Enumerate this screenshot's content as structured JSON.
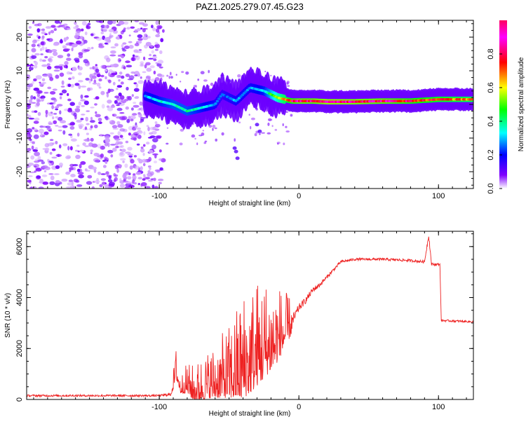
{
  "title": "PAZ1.2025.279.07.45.G23",
  "chart_data": [
    {
      "type": "heatmap",
      "title": "PAZ1.2025.279.07.45.G23",
      "xlabel": "Height of straight line (km)",
      "ylabel": "Frequency (Hz)",
      "xlim": [
        -195,
        125
      ],
      "ylim": [
        -25,
        25
      ],
      "xticks": [
        -100,
        0,
        100
      ],
      "yticks": [
        -20,
        -10,
        0,
        10,
        20
      ],
      "colorbar": {
        "label": "Normalized spectral amplitude",
        "range": [
          0,
          1
        ],
        "ticks": [
          "0.0",
          "0.2",
          "0.4",
          "0.6",
          "0.8"
        ],
        "tick_values": [
          0,
          0.2,
          0.4,
          0.6,
          0.8
        ],
        "colors": [
          "#ffffff",
          "#8000ff",
          "#0000ff",
          "#00ffff",
          "#00ff00",
          "#ffff00",
          "#ff0000",
          "#ff00ff",
          "#ff0060"
        ]
      },
      "ridge": {
        "x": [
          -110,
          -100,
          -90,
          -80,
          -70,
          -60,
          -55,
          -45,
          -35,
          -25,
          -15,
          -5,
          0,
          10,
          20,
          40,
          60,
          80,
          100,
          125
        ],
        "frequency": [
          2.5,
          1,
          0,
          -2,
          -1,
          0,
          3,
          1,
          5,
          4,
          2,
          1,
          1,
          1,
          0.8,
          0.8,
          1,
          1,
          1.5,
          1.5
        ],
        "amplitude": [
          0.3,
          0.35,
          0.4,
          0.4,
          0.35,
          0.3,
          0.25,
          0.3,
          0.3,
          0.35,
          0.6,
          0.8,
          0.85,
          0.85,
          0.9,
          0.88,
          0.85,
          0.8,
          0.75,
          0.7
        ]
      },
      "noise_region_x": [
        -195,
        -100
      ]
    },
    {
      "type": "line",
      "xlabel": "Height of straight line (km)",
      "ylabel": "SNR (10 * v/v)",
      "xlim": [
        -195,
        125
      ],
      "ylim": [
        0,
        6600
      ],
      "xticks": [
        -100,
        0,
        100
      ],
      "yticks": [
        0,
        2000,
        4000,
        6000
      ],
      "color": "#ee2222",
      "series": [
        {
          "name": "SNR",
          "x": [
            -195,
            -150,
            -100,
            -92,
            -90,
            -88,
            -85,
            -80,
            -75,
            -70,
            -60,
            -50,
            -45,
            -40,
            -35,
            -30,
            -25,
            -20,
            -15,
            -10,
            -5,
            0,
            5,
            10,
            15,
            20,
            25,
            30,
            40,
            50,
            60,
            70,
            80,
            90,
            93,
            95,
            100,
            101,
            102,
            110,
            125
          ],
          "y": [
            150,
            150,
            150,
            200,
            600,
            1200,
            450,
            600,
            350,
            500,
            700,
            900,
            1100,
            1300,
            1500,
            1800,
            2000,
            2200,
            2400,
            2700,
            3000,
            3600,
            3900,
            4300,
            4500,
            4800,
            5100,
            5400,
            5500,
            5500,
            5500,
            5480,
            5450,
            5400,
            6450,
            5300,
            5300,
            5300,
            3100,
            3080,
            3050
          ],
          "noise_amplitude": [
            80,
            80,
            80,
            120,
            300,
            500,
            300,
            500,
            600,
            700,
            900,
            1200,
            1500,
            1800,
            1800,
            1800,
            1700,
            1500,
            1300,
            900,
            600,
            300,
            250,
            220,
            180,
            150,
            120,
            110,
            100,
            100,
            100,
            100,
            100,
            100,
            200,
            100,
            100,
            80,
            80,
            80,
            80
          ]
        }
      ]
    }
  ]
}
